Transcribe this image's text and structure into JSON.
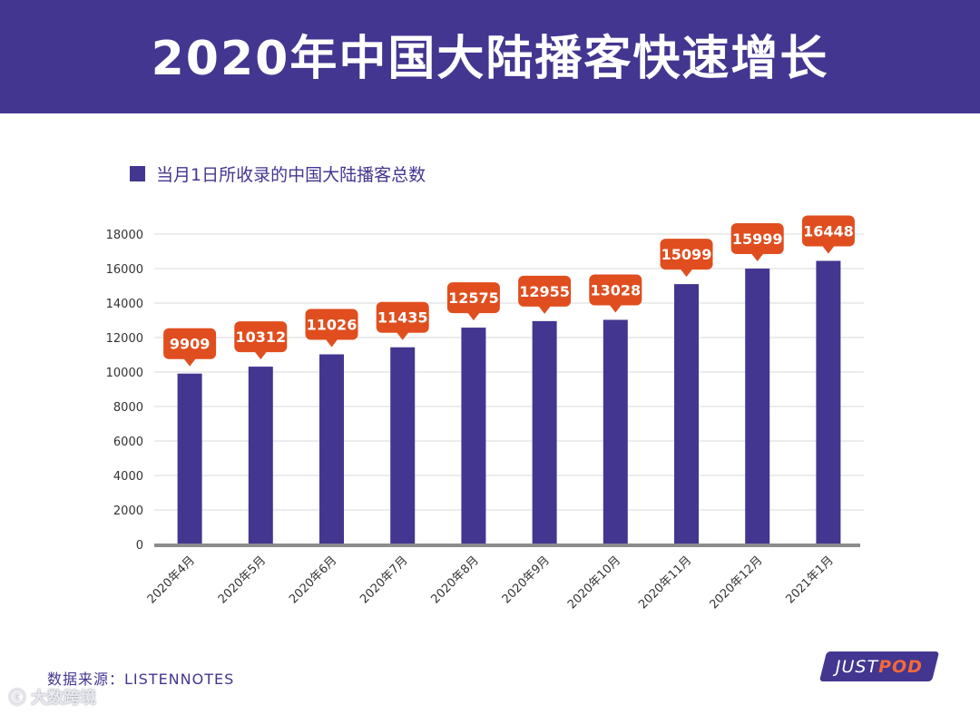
{
  "header": {
    "title": "2020年中国大陆播客快速增长"
  },
  "colors": {
    "accent": "#433690",
    "callout": "#e04e1f",
    "grid": "#d9d9d9",
    "axis": "#8c8c8c"
  },
  "chart_data": {
    "type": "bar",
    "title": "",
    "legend": "当月1日所收录的中国大陆播客总数",
    "categories": [
      "2020年4月",
      "2020年5月",
      "2020年6月",
      "2020年7月",
      "2020年8月",
      "2020年9月",
      "2020年10月",
      "2020年11月",
      "2020年12月",
      "2021年1月"
    ],
    "series": [
      {
        "name": "当月1日所收录的中国大陆播客总数",
        "values": [
          9909,
          10312,
          11026,
          11435,
          12575,
          12955,
          13028,
          15099,
          15999,
          16448
        ]
      }
    ],
    "yticks": [
      0,
      2000,
      4000,
      6000,
      8000,
      10000,
      12000,
      14000,
      16000,
      18000
    ],
    "ylim": [
      0,
      18000
    ],
    "xlabel": "",
    "ylabel": "",
    "grid": true,
    "legend_position": "top-left"
  },
  "footer": {
    "source": "数据来源：LISTENNOTES",
    "logo_just": "JUST",
    "logo_pod": "POD",
    "watermark_icon": "ⓒ",
    "watermark_text": "大数跨境"
  }
}
